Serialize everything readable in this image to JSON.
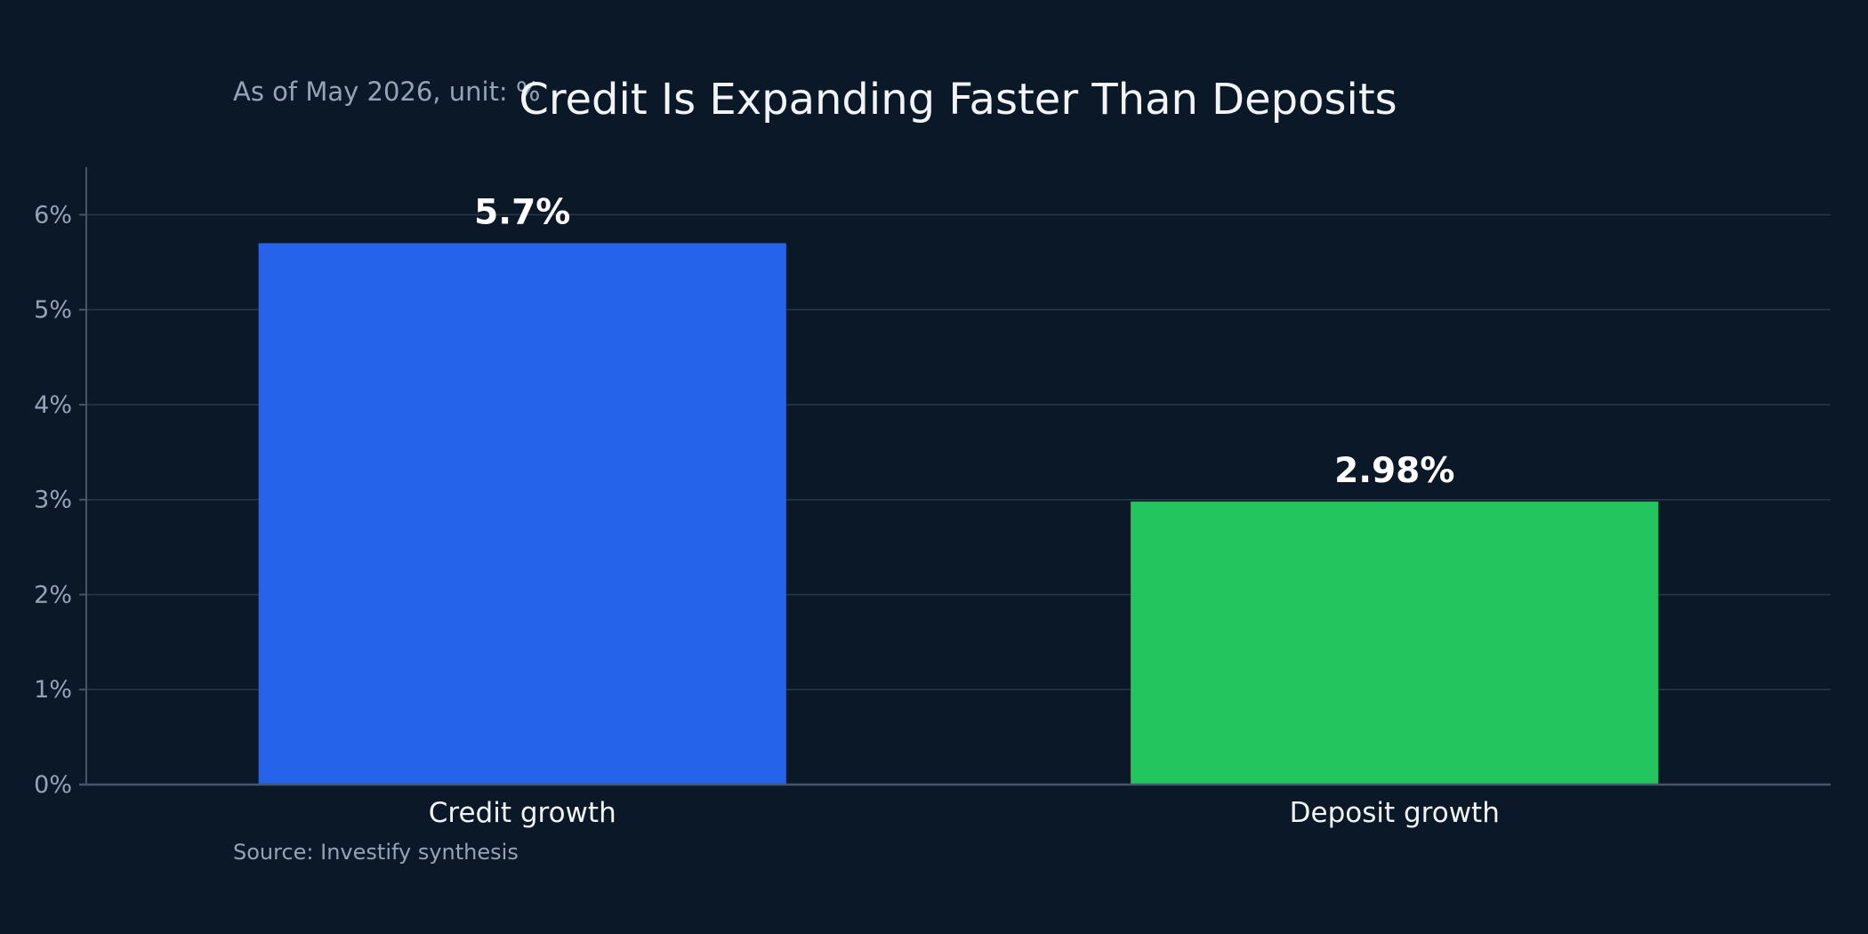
{
  "chart_data": {
    "type": "bar",
    "title": "Credit Is Expanding Faster Than Deposits",
    "subtitle": "As of May 2026, unit: %",
    "source": "Source: Investify synthesis",
    "xlabel": "",
    "ylabel": "",
    "categories": [
      "Credit growth",
      "Deposit growth"
    ],
    "values": [
      5.7,
      2.98
    ],
    "data_labels": [
      "5.7%",
      "2.98%"
    ],
    "bar_colors": [
      "#2563eb",
      "#22c55e"
    ],
    "ylim": [
      0,
      6.5
    ],
    "yticks": [
      0,
      1,
      2,
      3,
      4,
      5,
      6
    ],
    "ytick_labels": [
      "0%",
      "1%",
      "2%",
      "3%",
      "4%",
      "5%",
      "6%"
    ],
    "grid": true,
    "legend": "none"
  },
  "colors": {
    "background": "#0b1828",
    "title_text": "#f1f5f9",
    "muted_text": "#94a3b8",
    "gridline": "#2a3747",
    "axis_line": "#475569",
    "data_label": "#ffffff"
  }
}
